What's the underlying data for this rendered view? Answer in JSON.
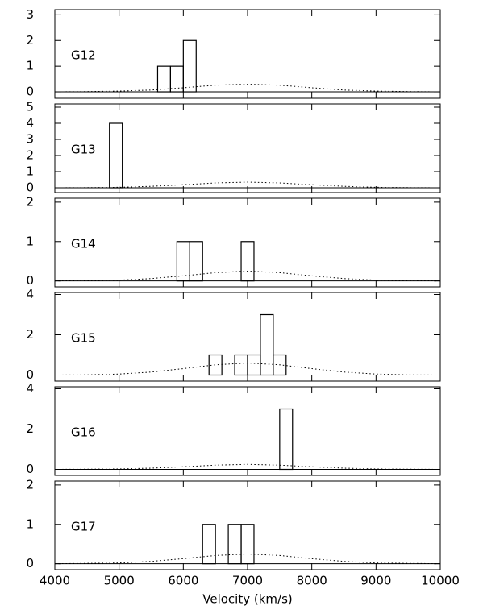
{
  "chart_data": [
    {
      "type": "histogram",
      "title": "G12",
      "bins": [
        5600,
        5800,
        6000,
        6200
      ],
      "values": [
        1,
        1,
        2
      ],
      "curve": {
        "x": [
          4000,
          4500,
          5000,
          5500,
          6000,
          6500,
          7000,
          7500,
          8000,
          8500,
          9000,
          9500,
          10000
        ],
        "values": [
          0,
          0.01,
          0.03,
          0.07,
          0.16,
          0.26,
          0.3,
          0.26,
          0.16,
          0.07,
          0.03,
          0.01,
          0
        ]
      },
      "xlim": [
        4000,
        10000
      ],
      "xticks": [
        4000,
        5000,
        6000,
        7000,
        8000,
        9000,
        10000
      ],
      "ylim": [
        -0.25,
        3.2
      ],
      "yticks": [
        0,
        1,
        2,
        3
      ]
    },
    {
      "type": "histogram",
      "title": "G13",
      "bins": [
        4850,
        5050
      ],
      "values": [
        4
      ],
      "curve": {
        "x": [
          4000,
          4500,
          5000,
          5500,
          6000,
          6500,
          7000,
          7500,
          8000,
          8500,
          9000,
          9500,
          10000
        ],
        "values": [
          0,
          0.01,
          0.03,
          0.09,
          0.19,
          0.3,
          0.35,
          0.3,
          0.19,
          0.09,
          0.03,
          0.01,
          0
        ]
      },
      "xlim": [
        4000,
        10000
      ],
      "xticks": [
        4000,
        5000,
        6000,
        7000,
        8000,
        9000,
        10000
      ],
      "ylim": [
        -0.3,
        5.2
      ],
      "yticks": [
        0,
        1,
        2,
        3,
        4,
        5
      ]
    },
    {
      "type": "histogram",
      "title": "G14",
      "bins": [
        5900,
        6100,
        6300,
        6500,
        6700,
        6900,
        7100
      ],
      "values": [
        1,
        1,
        0,
        0,
        0,
        1
      ],
      "curve": {
        "x": [
          4000,
          4500,
          5000,
          5500,
          6000,
          6500,
          7000,
          7500,
          8000,
          8500,
          9000,
          9500,
          10000
        ],
        "values": [
          0,
          0.01,
          0.02,
          0.06,
          0.13,
          0.21,
          0.25,
          0.21,
          0.13,
          0.06,
          0.02,
          0.01,
          0
        ]
      },
      "xlim": [
        4000,
        10000
      ],
      "xticks": [
        4000,
        5000,
        6000,
        7000,
        8000,
        9000,
        10000
      ],
      "ylim": [
        -0.15,
        2.1
      ],
      "yticks": [
        0,
        1,
        2
      ]
    },
    {
      "type": "histogram",
      "title": "G15",
      "bins": [
        6400,
        6600,
        6800,
        7000,
        7200,
        7400,
        7600
      ],
      "values": [
        1,
        0,
        1,
        1,
        3,
        1
      ],
      "curve": {
        "x": [
          4000,
          4500,
          5000,
          5500,
          6000,
          6500,
          7000,
          7500,
          8000,
          8500,
          9000,
          9500,
          10000
        ],
        "values": [
          0,
          0.01,
          0.05,
          0.15,
          0.32,
          0.51,
          0.6,
          0.51,
          0.32,
          0.15,
          0.05,
          0.01,
          0
        ]
      },
      "xlim": [
        4000,
        10000
      ],
      "xticks": [
        4000,
        5000,
        6000,
        7000,
        8000,
        9000,
        10000
      ],
      "ylim": [
        -0.3,
        4.1
      ],
      "yticks": [
        0,
        2,
        4
      ]
    },
    {
      "type": "histogram",
      "title": "G16",
      "bins": [
        7500,
        7700
      ],
      "values": [
        3
      ],
      "curve": {
        "x": [
          4000,
          4500,
          5000,
          5500,
          6000,
          6500,
          7000,
          7500,
          8000,
          8500,
          9000,
          9500,
          10000
        ],
        "values": [
          0,
          0.01,
          0.02,
          0.06,
          0.13,
          0.21,
          0.25,
          0.21,
          0.13,
          0.06,
          0.02,
          0.01,
          0
        ]
      },
      "xlim": [
        4000,
        10000
      ],
      "xticks": [
        4000,
        5000,
        6000,
        7000,
        8000,
        9000,
        10000
      ],
      "ylim": [
        -0.3,
        4.1
      ],
      "yticks": [
        0,
        2,
        4
      ]
    },
    {
      "type": "histogram",
      "title": "G17",
      "bins": [
        6300,
        6500,
        6700,
        6900,
        7100
      ],
      "values": [
        1,
        0,
        1,
        1
      ],
      "curve": {
        "x": [
          4000,
          4500,
          5000,
          5500,
          6000,
          6500,
          7000,
          7500,
          8000,
          8500,
          9000,
          9500,
          10000
        ],
        "values": [
          0,
          0.01,
          0.02,
          0.06,
          0.13,
          0.21,
          0.25,
          0.21,
          0.13,
          0.06,
          0.02,
          0.01,
          0
        ]
      },
      "xlim": [
        4000,
        10000
      ],
      "xticks": [
        4000,
        5000,
        6000,
        7000,
        8000,
        9000,
        10000
      ],
      "ylim": [
        -0.15,
        2.1
      ],
      "yticks": [
        0,
        1,
        2
      ],
      "xlabel": "Velocity (km/s)"
    }
  ]
}
